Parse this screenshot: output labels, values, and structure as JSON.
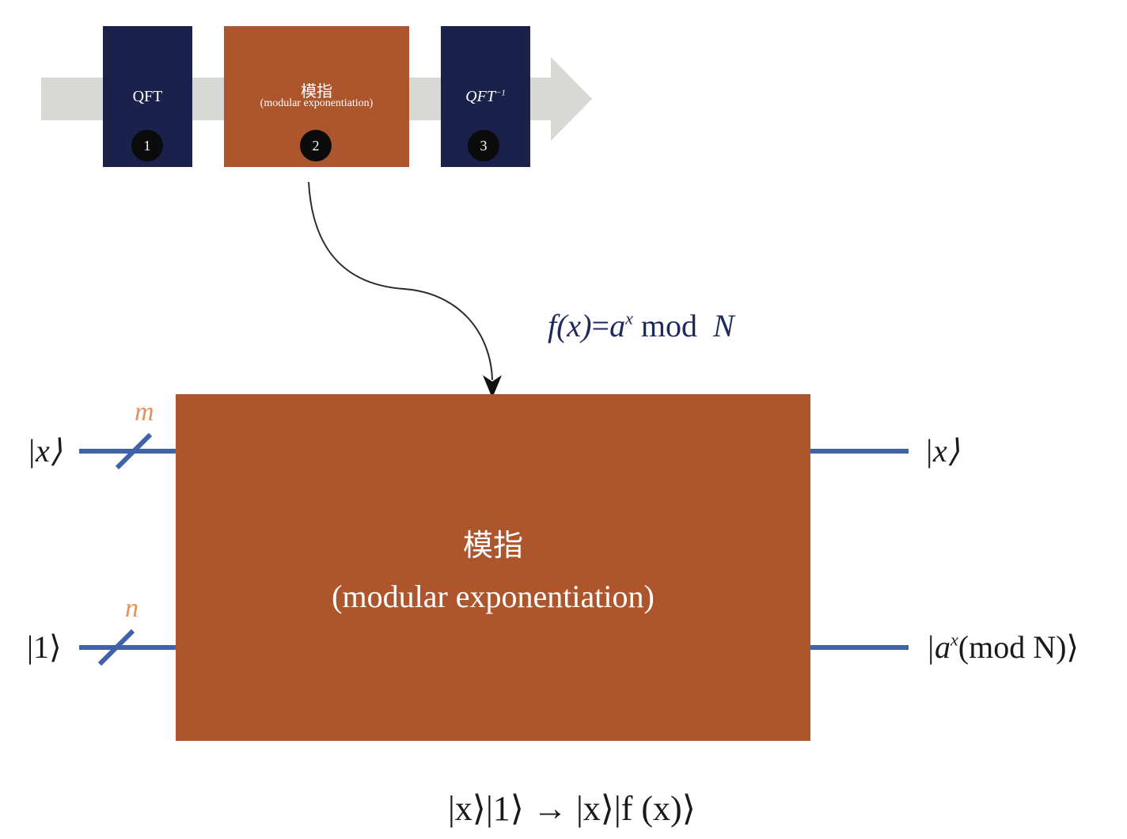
{
  "pipeline": {
    "blocks": [
      {
        "label": "QFT",
        "step": "1"
      },
      {
        "title": "模指",
        "subtitle": "(modular exponentiation)",
        "step": "2"
      },
      {
        "label": "QFT",
        "sup": "−1",
        "step": "3"
      }
    ]
  },
  "formula": {
    "lhs": "f(x)",
    "equals": "=",
    "base": "a",
    "exp": "x",
    "mod": "mod",
    "N": "N"
  },
  "main_block": {
    "title": "模指",
    "subtitle": "(modular exponentiation)"
  },
  "wires": {
    "top": {
      "input": "|x⟩",
      "register": "m",
      "output": "|x⟩"
    },
    "bottom": {
      "input": "|1⟩",
      "register": "n",
      "output_prefix": "|a",
      "output_exp": "x",
      "output_suffix": "(mod N)⟩"
    }
  },
  "transform": "|x⟩|1⟩ → |x⟩|f (x)⟩",
  "colors": {
    "dark_block": "#1a214b",
    "orange_block": "#ad552c",
    "wire": "#3f62a8",
    "arrow_band": "#d8d9d4",
    "register_label": "#e5915b",
    "formula": "#1f2a5c"
  }
}
